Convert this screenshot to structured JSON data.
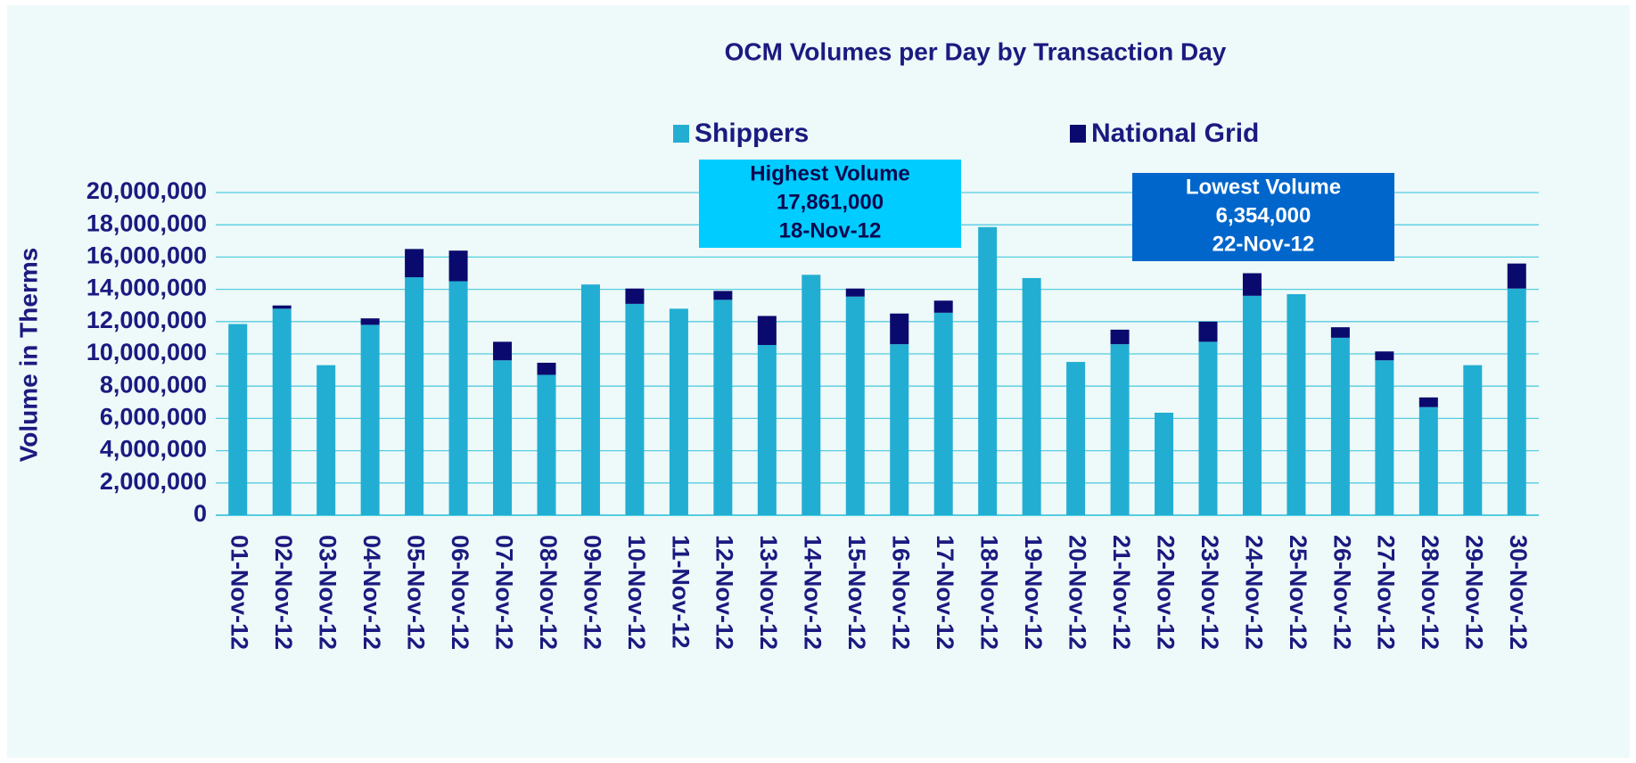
{
  "chart_data": {
    "type": "stacked_bar",
    "title": "OCM  Volumes per Day by Transaction Day",
    "y_label": "Volume in Therms",
    "categories": [
      "01-Nov-12",
      "02-Nov-12",
      "03-Nov-12",
      "04-Nov-12",
      "05-Nov-12",
      "06-Nov-12",
      "07-Nov-12",
      "08-Nov-12",
      "09-Nov-12",
      "10-Nov-12",
      "11-Nov-12",
      "12-Nov-12",
      "13-Nov-12",
      "14-Nov-12",
      "15-Nov-12",
      "16-Nov-12",
      "17-Nov-12",
      "18-Nov-12",
      "19-Nov-12",
      "20-Nov-12",
      "21-Nov-12",
      "22-Nov-12",
      "23-Nov-12",
      "24-Nov-12",
      "25-Nov-12",
      "26-Nov-12",
      "27-Nov-12",
      "28-Nov-12",
      "29-Nov-12",
      "30-Nov-12"
    ],
    "series": [
      {
        "name": "Shippers",
        "color": "#22aed3",
        "values": [
          11850000,
          12800000,
          9300000,
          11800000,
          14750000,
          14500000,
          9600000,
          8700000,
          14300000,
          13100000,
          12800000,
          13350000,
          10550000,
          14900000,
          13550000,
          10600000,
          12550000,
          17861000,
          14700000,
          9500000,
          10600000,
          6354000,
          10750000,
          13600000,
          13700000,
          11000000,
          9600000,
          6700000,
          9300000,
          14050000
        ]
      },
      {
        "name": "National Grid",
        "color": "#0a0a6e",
        "values": [
          0,
          200000,
          0,
          400000,
          1750000,
          1900000,
          1150000,
          750000,
          0,
          950000,
          0,
          550000,
          1800000,
          0,
          500000,
          1900000,
          750000,
          0,
          0,
          0,
          900000,
          0,
          1250000,
          1400000,
          0,
          650000,
          550000,
          600000,
          0,
          1550000
        ]
      }
    ],
    "ylim": [
      0,
      20000000
    ],
    "yticks": [
      0,
      {
        "value": 2000000,
        "label": "2,000,000"
      },
      {
        "value": 4000000,
        "label": "4,000,000"
      },
      {
        "value": 6000000,
        "label": "6,000,000"
      },
      {
        "value": 8000000,
        "label": "8,000,000"
      },
      {
        "value": 10000000,
        "label": "10,000,000"
      },
      {
        "value": 12000000,
        "label": "12,000,000"
      },
      {
        "value": 14000000,
        "label": "14,000,000"
      },
      {
        "value": 16000000,
        "label": "16,000,000"
      },
      {
        "value": 18000000,
        "label": "18,000,000"
      },
      {
        "value": 20000000,
        "label": "20,000,000"
      }
    ],
    "grid": true,
    "annotations": [
      {
        "lines": [
          "Highest Volume",
          "17,861,000",
          "18-Nov-12"
        ],
        "color": "#00ccff",
        "text_color": "#0a0a50"
      },
      {
        "lines": [
          "Lowest Volume",
          "6,354,000",
          "22-Nov-12"
        ],
        "color": "#0066cc",
        "text_color": "#ffffff"
      }
    ]
  }
}
